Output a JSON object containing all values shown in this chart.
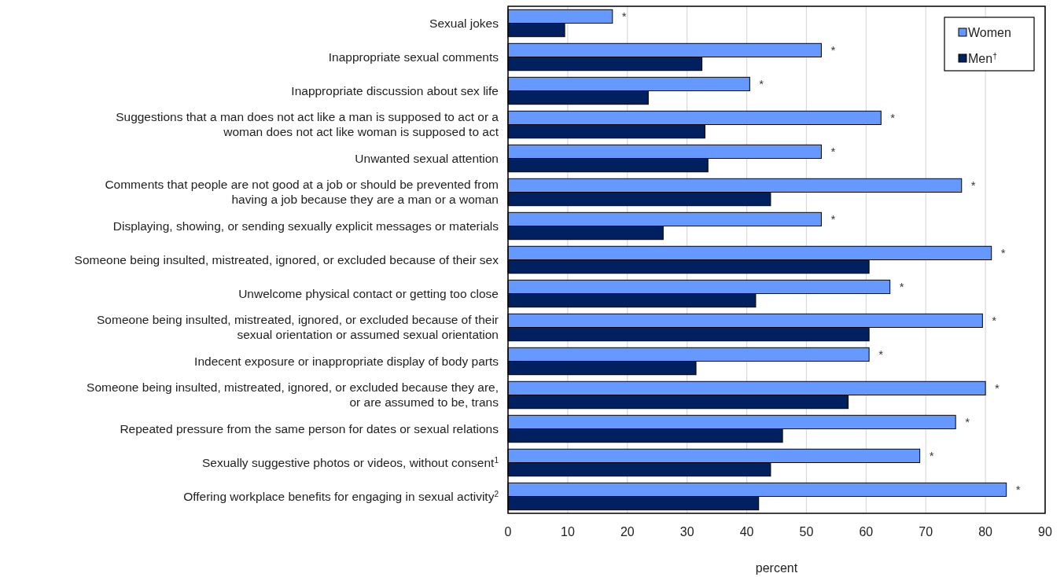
{
  "chart_data": {
    "type": "bar",
    "orientation": "horizontal",
    "xlabel": "percent",
    "categories": [
      "Sexual jokes",
      "Inappropriate sexual comments",
      "Inappropriate discussion about sex life",
      "Suggestions that a man does not act like a man is supposed to act or a\nwoman does not act like woman is supposed to act",
      "Unwanted sexual attention",
      "Comments that people are not good at a job or should be prevented from\nhaving a job because they are a man or a woman",
      "Displaying, showing, or sending sexually explicit messages or materials",
      "Someone being insulted, mistreated, ignored, or excluded because of their sex",
      "Unwelcome physical contact or getting too close",
      "Someone being insulted, mistreated, ignored, or excluded because of their\nsexual orientation or assumed sexual orientation",
      "Indecent exposure or inappropriate display of body parts",
      "Someone being insulted, mistreated, ignored, or excluded because they are,\nor are assumed to be, trans",
      "Repeated pressure from the same person for dates or sexual relations",
      "Sexually suggestive photos or videos, without consent$^{1}$",
      "Offering workplace benefits for engaging in sexual activity$^{2}$"
    ],
    "series": [
      {
        "name": "Women",
        "color": "#6699ff",
        "values": [
          17.5,
          52.5,
          40.5,
          62.5,
          52.5,
          76,
          52.5,
          81,
          64,
          79.5,
          60.5,
          80,
          75,
          69,
          83.5
        ],
        "value_labels": [
          "*",
          "*",
          "*",
          "*",
          "*",
          "*",
          "*",
          "*",
          "*",
          "*",
          "*",
          "*",
          "*",
          "*",
          "*"
        ]
      },
      {
        "name": "Men$^{†}$",
        "color": "#002060",
        "values": [
          9.5,
          32.5,
          23.5,
          33,
          33.5,
          44,
          26,
          60.5,
          41.5,
          60.5,
          31.5,
          57,
          46,
          44,
          42
        ]
      }
    ],
    "xlim": [
      0,
      90
    ],
    "xticks": [
      0,
      10,
      20,
      30,
      40,
      50,
      60,
      70,
      80,
      90
    ],
    "grid": "x",
    "legend": "top right"
  }
}
